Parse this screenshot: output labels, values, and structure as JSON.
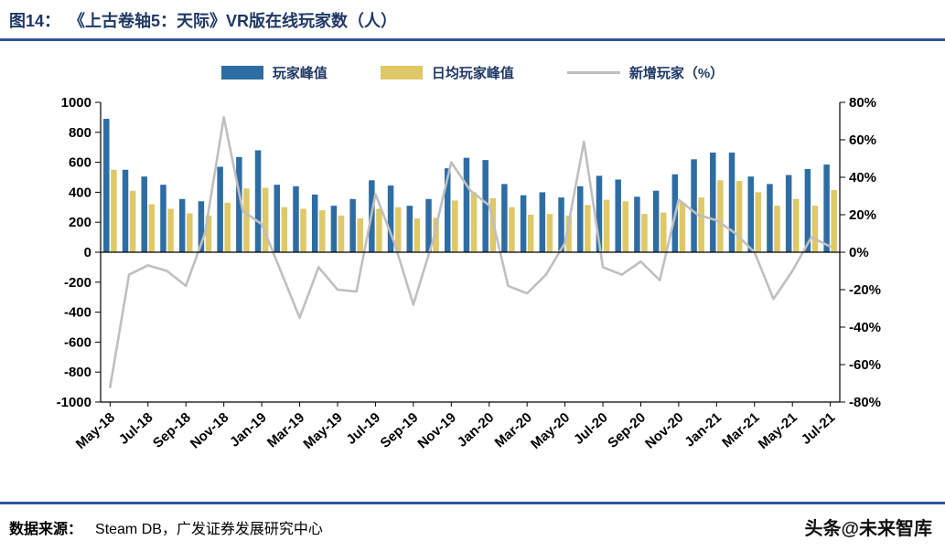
{
  "header": {
    "figure_label": "图14：",
    "title": "《上古卷轴5：天际》VR版在线玩家数（人）"
  },
  "legend": [
    {
      "label": "玩家峰值",
      "type": "bar",
      "color": "#2E6DA4"
    },
    {
      "label": "日均玩家峰值",
      "type": "bar",
      "color": "#DEC868"
    },
    {
      "label": "新增玩家（%）",
      "type": "line",
      "color": "#BFBFBF"
    }
  ],
  "footer": {
    "source_label": "数据来源：",
    "source_text": "Steam DB，广发证券发展研究中心",
    "watermark": "头条@未来智库"
  },
  "chart_data": {
    "type": "bar+line combo",
    "title": "《上古卷轴5：天际》VR版在线玩家数（人）",
    "legend_position": "top",
    "grid": false,
    "categories": [
      "May-18",
      "Jun-18",
      "Jul-18",
      "Aug-18",
      "Sep-18",
      "Oct-18",
      "Nov-18",
      "Dec-18",
      "Jan-19",
      "Feb-19",
      "Mar-19",
      "Apr-19",
      "May-19",
      "Jun-19",
      "Jul-19",
      "Aug-19",
      "Sep-19",
      "Oct-19",
      "Nov-19",
      "Dec-19",
      "Jan-20",
      "Feb-20",
      "Mar-20",
      "Apr-20",
      "May-20",
      "Jun-20",
      "Jul-20",
      "Aug-20",
      "Sep-20",
      "Oct-20",
      "Nov-20",
      "Dec-20",
      "Jan-21",
      "Feb-21",
      "Mar-21",
      "Apr-21",
      "May-21",
      "Jun-21",
      "Jul-21"
    ],
    "x_tick_every": 2,
    "left_axis": {
      "min": -1000,
      "max": 1000,
      "step": 200
    },
    "right_axis": {
      "min": -80,
      "max": 80,
      "step": 20,
      "suffix": "%"
    },
    "series": [
      {
        "name": "玩家峰值",
        "type": "bar",
        "axis": "left",
        "color": "#2E6DA4",
        "values": [
          890,
          550,
          505,
          450,
          355,
          340,
          570,
          635,
          680,
          450,
          440,
          385,
          310,
          355,
          480,
          445,
          310,
          355,
          560,
          630,
          615,
          455,
          380,
          400,
          365,
          440,
          510,
          485,
          370,
          410,
          520,
          620,
          665,
          665,
          505,
          455,
          515,
          555,
          585
        ]
      },
      {
        "name": "日均玩家峰值",
        "type": "bar",
        "axis": "left",
        "color": "#DEC868",
        "values": [
          550,
          410,
          320,
          290,
          260,
          245,
          330,
          425,
          430,
          300,
          290,
          280,
          245,
          225,
          290,
          300,
          225,
          230,
          345,
          400,
          360,
          300,
          250,
          255,
          245,
          315,
          350,
          340,
          255,
          265,
          330,
          365,
          480,
          475,
          400,
          310,
          355,
          310,
          415
        ]
      },
      {
        "name": "新增玩家（%）",
        "type": "line",
        "axis": "right",
        "color": "#BFBFBF",
        "values": [
          -72,
          -12,
          -7,
          -10,
          -18,
          10,
          72,
          22,
          15,
          -10,
          -35,
          -8,
          -20,
          -21,
          31,
          5,
          -28,
          5,
          48,
          33,
          25,
          -18,
          -22,
          -12,
          5,
          59,
          -8,
          -12,
          -5,
          -15,
          28,
          20,
          17,
          10,
          0,
          -25,
          -10,
          8,
          3
        ]
      }
    ]
  }
}
